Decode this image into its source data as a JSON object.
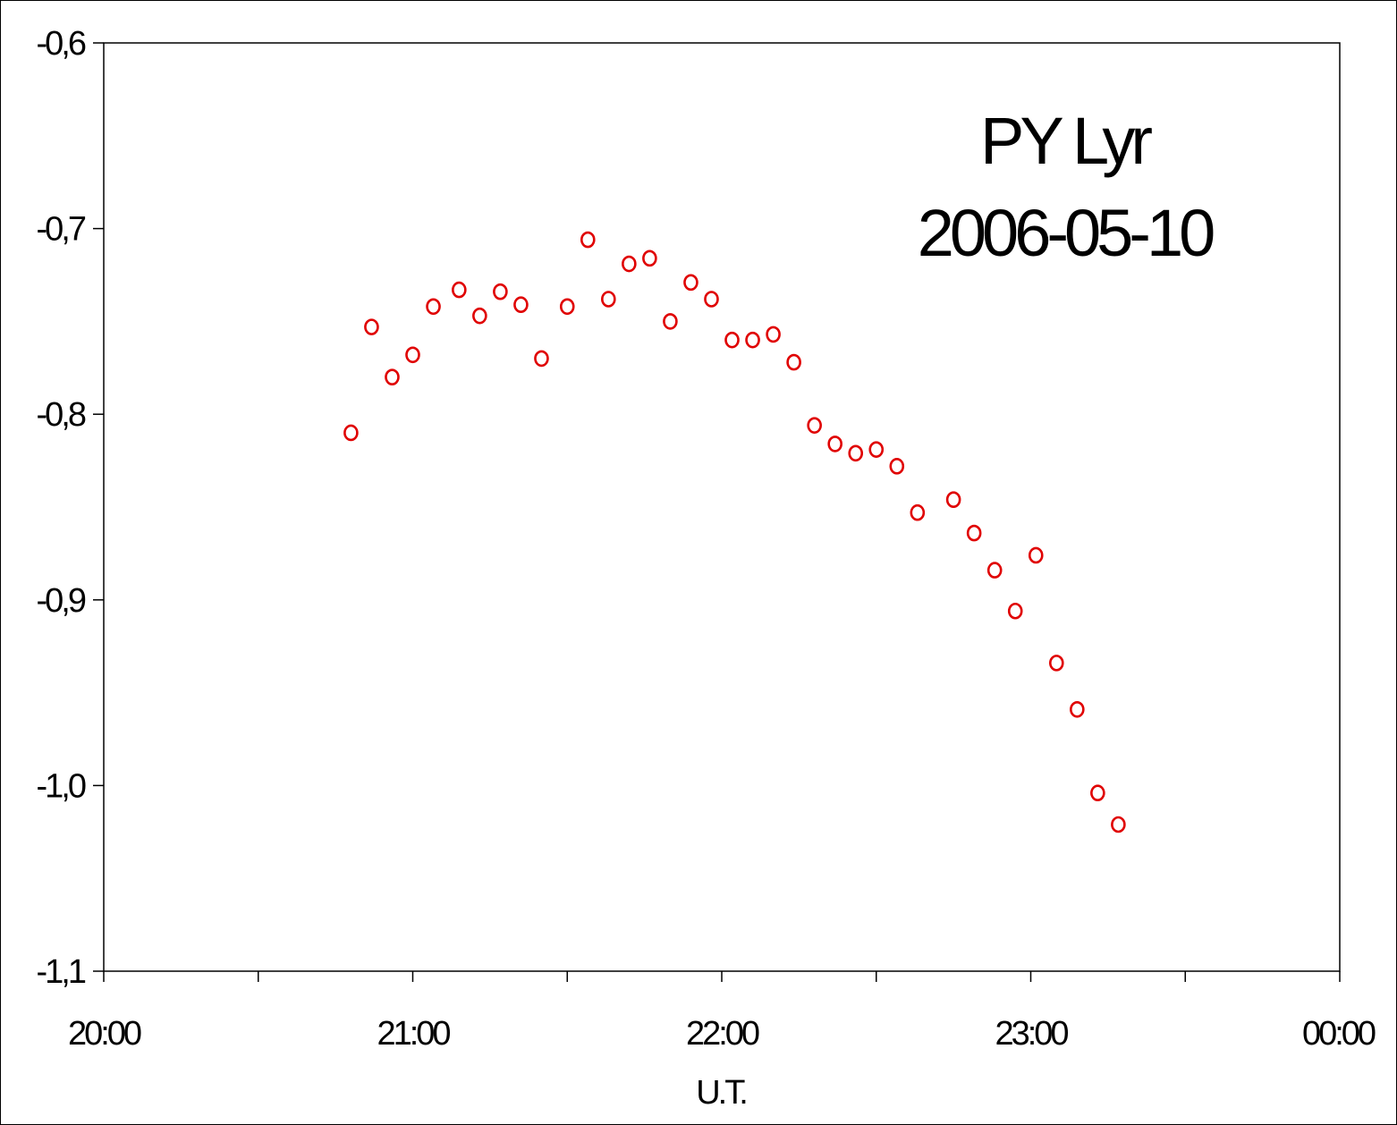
{
  "chart_data": {
    "type": "scatter",
    "title_lines": [
      "PY Lyr",
      "2006-05-10"
    ],
    "xlabel": "U.T.",
    "ylabel": "",
    "xlim": [
      "20:00",
      "00:00"
    ],
    "ylim": [
      -1.1,
      -0.6
    ],
    "x_tick_labels": [
      "20:00",
      "21:00",
      "22:00",
      "23:00",
      "00:00"
    ],
    "y_tick_labels": [
      "-0,6",
      "-0,7",
      "-0,8",
      "-0,9",
      "-1,0",
      "-1,1"
    ],
    "grid": false,
    "marker_color": "#e00000",
    "marker": "open-circle",
    "points": [
      {
        "x": "20:48",
        "y": -0.81
      },
      {
        "x": "20:52",
        "y": -0.753
      },
      {
        "x": "20:56",
        "y": -0.78
      },
      {
        "x": "21:00",
        "y": -0.768
      },
      {
        "x": "21:04",
        "y": -0.742
      },
      {
        "x": "21:09",
        "y": -0.733
      },
      {
        "x": "21:13",
        "y": -0.747
      },
      {
        "x": "21:17",
        "y": -0.734
      },
      {
        "x": "21:21",
        "y": -0.741
      },
      {
        "x": "21:25",
        "y": -0.77
      },
      {
        "x": "21:30",
        "y": -0.742
      },
      {
        "x": "21:34",
        "y": -0.706
      },
      {
        "x": "21:38",
        "y": -0.738
      },
      {
        "x": "21:42",
        "y": -0.719
      },
      {
        "x": "21:46",
        "y": -0.716
      },
      {
        "x": "21:50",
        "y": -0.75
      },
      {
        "x": "21:54",
        "y": -0.729
      },
      {
        "x": "21:58",
        "y": -0.738
      },
      {
        "x": "22:02",
        "y": -0.76
      },
      {
        "x": "22:06",
        "y": -0.76
      },
      {
        "x": "22:10",
        "y": -0.757
      },
      {
        "x": "22:14",
        "y": -0.772
      },
      {
        "x": "22:18",
        "y": -0.806
      },
      {
        "x": "22:22",
        "y": -0.816
      },
      {
        "x": "22:26",
        "y": -0.821
      },
      {
        "x": "22:30",
        "y": -0.819
      },
      {
        "x": "22:34",
        "y": -0.828
      },
      {
        "x": "22:38",
        "y": -0.853
      },
      {
        "x": "22:45",
        "y": -0.846
      },
      {
        "x": "22:49",
        "y": -0.864
      },
      {
        "x": "22:53",
        "y": -0.884
      },
      {
        "x": "22:57",
        "y": -0.906
      },
      {
        "x": "23:01",
        "y": -0.876
      },
      {
        "x": "23:05",
        "y": -0.934
      },
      {
        "x": "23:09",
        "y": -0.959
      },
      {
        "x": "23:13",
        "y": -1.004
      },
      {
        "x": "23:17",
        "y": -1.021
      }
    ]
  }
}
